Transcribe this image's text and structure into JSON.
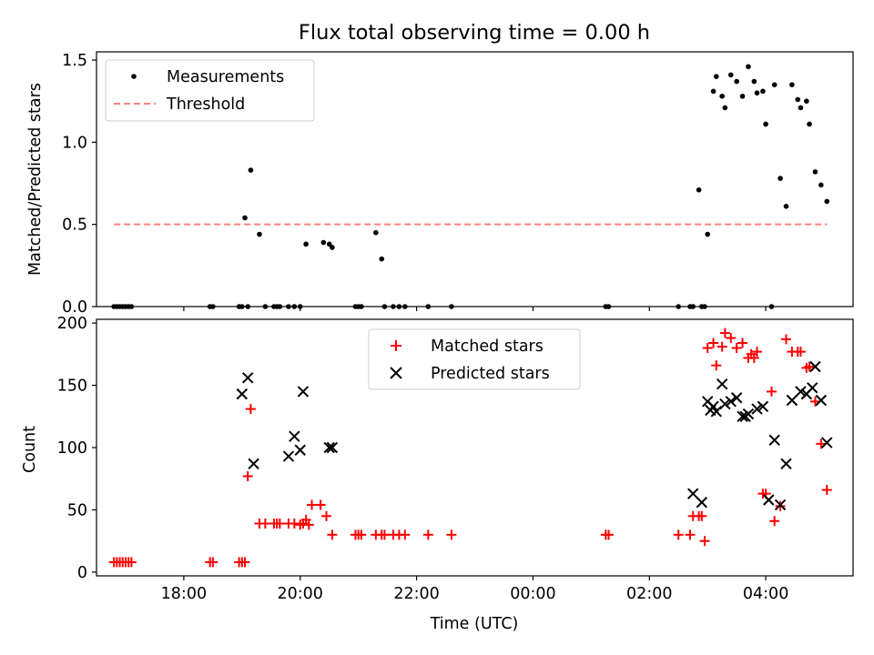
{
  "title": "Flux total observing time = 0.00 h",
  "colors": {
    "measurement": "#000000",
    "threshold": "#ff8080",
    "matched": "#ff0000",
    "predicted": "#000000",
    "axis": "#000000"
  },
  "chart_data": [
    {
      "type": "scatter",
      "ylabel": "Matched/Predicted stars",
      "xlim": [
        -7.5,
        5.5
      ],
      "ylim": [
        0,
        1.55
      ],
      "yticks": [
        0,
        0.5,
        1.0,
        1.5
      ],
      "ytick_labels": [
        "0.0",
        "0.5",
        "1.0",
        "1.5"
      ],
      "legend": {
        "position": "top-left",
        "measurements_label": "Measurements",
        "threshold_label": "Threshold"
      },
      "threshold": {
        "value": 0.5,
        "x_range": [
          -7.2,
          5.05
        ]
      },
      "series": [
        {
          "name": "Measurements",
          "x": [
            -7.2,
            -7.15,
            -7.1,
            -7.05,
            -7.0,
            -6.95,
            -6.9,
            -5.55,
            -5.5,
            -5.05,
            -5.0,
            -4.95,
            -4.9,
            -4.85,
            -4.7,
            -4.6,
            -4.45,
            -4.4,
            -4.35,
            -4.2,
            -4.1,
            -4.0,
            -3.9,
            -3.6,
            -3.5,
            -3.45,
            -3.05,
            -3.0,
            -2.95,
            -2.7,
            -2.6,
            -2.55,
            -2.4,
            -2.3,
            -2.2,
            -1.8,
            -1.4,
            1.25,
            1.3,
            2.5,
            2.7,
            2.75,
            2.85,
            2.9,
            2.95,
            3.0,
            3.1,
            3.15,
            3.25,
            3.3,
            3.4,
            3.5,
            3.6,
            3.7,
            3.8,
            3.85,
            3.95,
            4.0,
            4.1,
            4.15,
            4.25,
            4.35,
            4.45,
            4.55,
            4.6,
            4.7,
            4.75,
            4.85,
            4.95,
            5.05
          ],
          "y": [
            0,
            0,
            0,
            0,
            0,
            0,
            0,
            0,
            0,
            0,
            0,
            0.54,
            0,
            0.83,
            0.44,
            0,
            0,
            0,
            0,
            0,
            0,
            0,
            0.38,
            0.39,
            0.38,
            0.36,
            0,
            0,
            0,
            0.45,
            0.29,
            0,
            0,
            0,
            0,
            0,
            0,
            0,
            0,
            0,
            0,
            0,
            0.71,
            0,
            0,
            0.44,
            1.31,
            1.4,
            1.28,
            1.21,
            1.41,
            1.37,
            1.28,
            1.46,
            1.37,
            1.3,
            1.31,
            1.11,
            0,
            1.35,
            0.78,
            0.61,
            1.35,
            1.26,
            1.21,
            1.25,
            1.11,
            0.82,
            0.74,
            0.64
          ]
        }
      ]
    },
    {
      "type": "scatter",
      "xlabel": "Time (UTC)",
      "ylabel": "Count",
      "xlim": [
        -7.5,
        5.5
      ],
      "ylim": [
        -3,
        203
      ],
      "xticks": [
        -6,
        -4,
        -2,
        0,
        2,
        4
      ],
      "xtick_labels": [
        "18:00",
        "20:00",
        "22:00",
        "00:00",
        "02:00",
        "04:00"
      ],
      "yticks": [
        0,
        50,
        100,
        150,
        200
      ],
      "ytick_labels": [
        "0",
        "50",
        "100",
        "150",
        "200"
      ],
      "legend": {
        "position": "top-center"
      },
      "series": [
        {
          "name": "Matched stars",
          "marker": "+",
          "x": [
            -7.2,
            -7.15,
            -7.1,
            -7.05,
            -7.0,
            -6.95,
            -6.9,
            -5.55,
            -5.5,
            -5.05,
            -5.0,
            -4.95,
            -4.9,
            -4.85,
            -4.7,
            -4.6,
            -4.45,
            -4.4,
            -4.35,
            -4.2,
            -4.1,
            -4.0,
            -3.95,
            -3.9,
            -3.85,
            -3.8,
            -3.65,
            -3.55,
            -3.45,
            -3.05,
            -3.0,
            -2.95,
            -2.7,
            -2.6,
            -2.55,
            -2.4,
            -2.3,
            -2.2,
            -1.8,
            -1.4,
            1.25,
            1.3,
            2.5,
            2.7,
            2.75,
            2.85,
            2.9,
            2.95,
            3.0,
            3.1,
            3.15,
            3.25,
            3.3,
            3.4,
            3.5,
            3.6,
            3.7,
            3.75,
            3.8,
            3.85,
            3.95,
            4.0,
            4.1,
            4.15,
            4.25,
            4.35,
            4.45,
            4.55,
            4.6,
            4.7,
            4.75,
            4.85,
            4.95,
            5.05
          ],
          "y": [
            8,
            8,
            8,
            8,
            8,
            8,
            8,
            8,
            8,
            8,
            8,
            8,
            77,
            131,
            39,
            39,
            39,
            39,
            39,
            39,
            39,
            38,
            39,
            42,
            38,
            54,
            54,
            45,
            30,
            30,
            30,
            30,
            30,
            30,
            30,
            30,
            30,
            30,
            30,
            30,
            30,
            30,
            30,
            30,
            45,
            45,
            45,
            25,
            180,
            184,
            166,
            181,
            192,
            188,
            180,
            184,
            172,
            175,
            172,
            177,
            63,
            63,
            145,
            41,
            53,
            187,
            177,
            177,
            177,
            164,
            165,
            137,
            103,
            66
          ]
        },
        {
          "name": "Predicted stars",
          "marker": "x",
          "x": [
            -5.0,
            -4.9,
            -4.8,
            -4.2,
            -4.1,
            -4.0,
            -3.95,
            -3.5,
            -3.45,
            2.75,
            2.9,
            3.0,
            3.05,
            3.1,
            3.15,
            3.25,
            3.3,
            3.4,
            3.5,
            3.6,
            3.65,
            3.7,
            3.85,
            3.95,
            4.05,
            4.15,
            4.25,
            4.35,
            4.45,
            4.6,
            4.7,
            4.8,
            4.85,
            4.95,
            5.05
          ],
          "y": [
            143,
            156,
            87,
            93,
            109,
            98,
            145,
            100,
            100,
            63,
            56,
            137,
            130,
            133,
            129,
            151,
            135,
            137,
            140,
            125,
            125,
            127,
            131,
            133,
            58,
            106,
            54,
            87,
            138,
            145,
            143,
            148,
            165,
            138,
            104
          ]
        }
      ]
    }
  ]
}
